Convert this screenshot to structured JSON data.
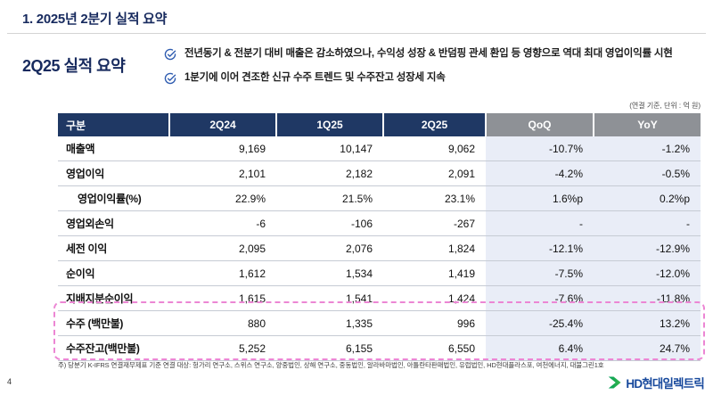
{
  "page": {
    "title": "1. 2025년 2분기 실적 요약",
    "page_number": "4"
  },
  "summary": {
    "heading": "2Q25 실적 요약",
    "bullets": [
      "전년동기 & 전분기 대비 매출은 감소하였으나, 수익성 성장 & 반덤핑 관세 환입 등 영향으로 역대 최대 영업이익률 시현",
      "1분기에 이어 견조한 신규 수주 트렌드 및 수주잔고 성장세 지속"
    ]
  },
  "table": {
    "unit_note": "(연결 기준, 단위 : 억 원)",
    "columns": [
      "구분",
      "2Q24",
      "1Q25",
      "2Q25",
      "QoQ",
      "YoY"
    ],
    "rows": [
      {
        "cells": [
          "매출액",
          "9,169",
          "10,147",
          "9,062",
          "-10.7%",
          "-1.2%"
        ],
        "indent": false,
        "highlight": false
      },
      {
        "cells": [
          "영업이익",
          "2,101",
          "2,182",
          "2,091",
          "-4.2%",
          "-0.5%"
        ],
        "indent": false,
        "highlight": false
      },
      {
        "cells": [
          "영업이익률(%)",
          "22.9%",
          "21.5%",
          "23.1%",
          "1.6%p",
          "0.2%p"
        ],
        "indent": true,
        "highlight": false
      },
      {
        "cells": [
          "영업외손익",
          "-6",
          "-106",
          "-267",
          "-",
          "-"
        ],
        "indent": false,
        "highlight": false
      },
      {
        "cells": [
          "세전 이익",
          "2,095",
          "2,076",
          "1,824",
          "-12.1%",
          "-12.9%"
        ],
        "indent": false,
        "highlight": false
      },
      {
        "cells": [
          "순이익",
          "1,612",
          "1,534",
          "1,419",
          "-7.5%",
          "-12.0%"
        ],
        "indent": false,
        "highlight": false
      },
      {
        "cells": [
          "지배지분순이익",
          "1,615",
          "1,541",
          "1,424",
          "-7.6%",
          "-11.8%"
        ],
        "indent": false,
        "highlight": false
      },
      {
        "cells": [
          "수주 (백만불)",
          "880",
          "1,335",
          "996",
          "-25.4%",
          "13.2%"
        ],
        "indent": false,
        "highlight": true
      },
      {
        "cells": [
          "수주잔고(백만불)",
          "5,252",
          "6,155",
          "6,550",
          "6.4%",
          "24.7%"
        ],
        "indent": false,
        "highlight": true
      }
    ]
  },
  "footnote": "주) 당분기 K-IFRS 연결재무제표 기준 연결 대상: 헝가리 연구소, 스위스 연구소, 양중법인, 상해 연구소, 중동법인, 알라바마법인, 아틀란타판매법인, 유럽법인, HD현대플라스포, 여천에너지, 대불그린1호",
  "logo": {
    "text": "HD현대일렉트릭"
  },
  "colors": {
    "title_navy": "#172a5e",
    "header_navy": "#1f3864",
    "header_gray": "#8e9196",
    "highlight_column_bg": "#e9edf7",
    "dashed_box_pink": "#ec86d4",
    "check_icon_blue": "#2f5cb0",
    "logo_green": "#15a84e",
    "logo_text_blue": "#16489c"
  }
}
